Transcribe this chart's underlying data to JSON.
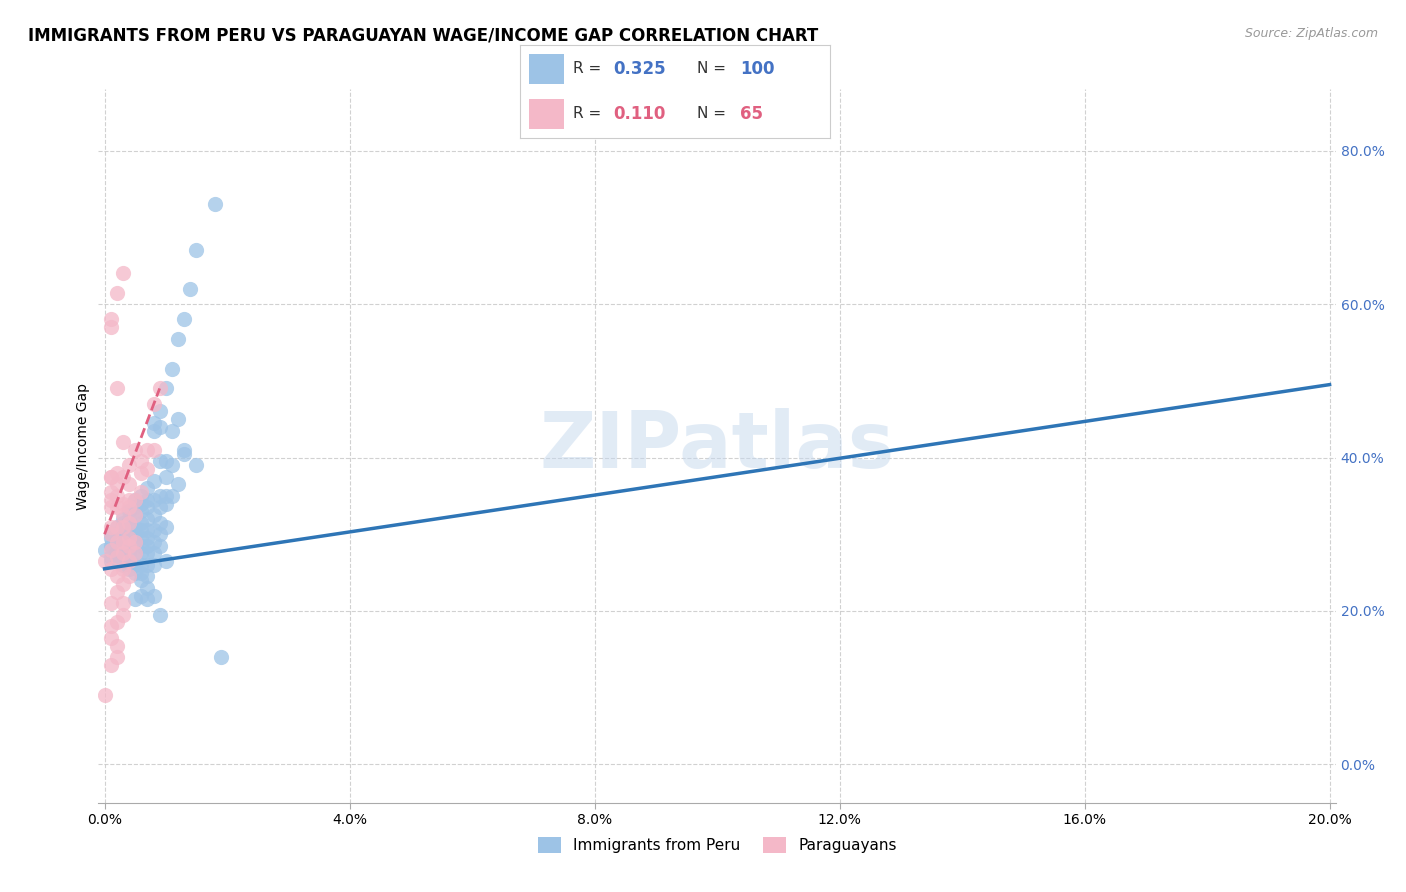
{
  "title": "IMMIGRANTS FROM PERU VS PARAGUAYAN WAGE/INCOME GAP CORRELATION CHART",
  "source": "Source: ZipAtlas.com",
  "ylabel": "Wage/Income Gap",
  "watermark": "ZIPatlas",
  "blue_color": "#9dc3e6",
  "pink_color": "#f4b8c8",
  "blue_line_color": "#2e75b6",
  "pink_line_color": "#e06080",
  "blue_scatter": [
    [
      0.0,
      0.28
    ],
    [
      0.001,
      0.265
    ],
    [
      0.001,
      0.27
    ],
    [
      0.001,
      0.295
    ],
    [
      0.001,
      0.3
    ],
    [
      0.001,
      0.285
    ],
    [
      0.002,
      0.31
    ],
    [
      0.002,
      0.29
    ],
    [
      0.002,
      0.295
    ],
    [
      0.002,
      0.28
    ],
    [
      0.002,
      0.265
    ],
    [
      0.002,
      0.275
    ],
    [
      0.003,
      0.315
    ],
    [
      0.003,
      0.32
    ],
    [
      0.003,
      0.305
    ],
    [
      0.003,
      0.295
    ],
    [
      0.003,
      0.28
    ],
    [
      0.003,
      0.27
    ],
    [
      0.003,
      0.26
    ],
    [
      0.003,
      0.265
    ],
    [
      0.004,
      0.33
    ],
    [
      0.004,
      0.32
    ],
    [
      0.004,
      0.315
    ],
    [
      0.004,
      0.3
    ],
    [
      0.004,
      0.285
    ],
    [
      0.004,
      0.275
    ],
    [
      0.004,
      0.265
    ],
    [
      0.004,
      0.255
    ],
    [
      0.005,
      0.345
    ],
    [
      0.005,
      0.335
    ],
    [
      0.005,
      0.325
    ],
    [
      0.005,
      0.31
    ],
    [
      0.005,
      0.3
    ],
    [
      0.005,
      0.29
    ],
    [
      0.005,
      0.275
    ],
    [
      0.005,
      0.26
    ],
    [
      0.005,
      0.25
    ],
    [
      0.005,
      0.215
    ],
    [
      0.006,
      0.35
    ],
    [
      0.006,
      0.34
    ],
    [
      0.006,
      0.33
    ],
    [
      0.006,
      0.315
    ],
    [
      0.006,
      0.305
    ],
    [
      0.006,
      0.295
    ],
    [
      0.006,
      0.285
    ],
    [
      0.006,
      0.275
    ],
    [
      0.006,
      0.26
    ],
    [
      0.006,
      0.25
    ],
    [
      0.006,
      0.24
    ],
    [
      0.006,
      0.22
    ],
    [
      0.007,
      0.36
    ],
    [
      0.007,
      0.345
    ],
    [
      0.007,
      0.335
    ],
    [
      0.007,
      0.32
    ],
    [
      0.007,
      0.305
    ],
    [
      0.007,
      0.295
    ],
    [
      0.007,
      0.285
    ],
    [
      0.007,
      0.275
    ],
    [
      0.007,
      0.26
    ],
    [
      0.007,
      0.245
    ],
    [
      0.007,
      0.23
    ],
    [
      0.007,
      0.215
    ],
    [
      0.008,
      0.37
    ],
    [
      0.008,
      0.445
    ],
    [
      0.008,
      0.435
    ],
    [
      0.008,
      0.345
    ],
    [
      0.008,
      0.325
    ],
    [
      0.008,
      0.305
    ],
    [
      0.008,
      0.29
    ],
    [
      0.008,
      0.275
    ],
    [
      0.008,
      0.26
    ],
    [
      0.008,
      0.22
    ],
    [
      0.009,
      0.46
    ],
    [
      0.009,
      0.44
    ],
    [
      0.009,
      0.395
    ],
    [
      0.009,
      0.35
    ],
    [
      0.009,
      0.335
    ],
    [
      0.009,
      0.315
    ],
    [
      0.009,
      0.3
    ],
    [
      0.009,
      0.285
    ],
    [
      0.009,
      0.195
    ],
    [
      0.01,
      0.49
    ],
    [
      0.01,
      0.395
    ],
    [
      0.01,
      0.375
    ],
    [
      0.01,
      0.35
    ],
    [
      0.01,
      0.34
    ],
    [
      0.01,
      0.31
    ],
    [
      0.01,
      0.265
    ],
    [
      0.011,
      0.515
    ],
    [
      0.011,
      0.435
    ],
    [
      0.011,
      0.39
    ],
    [
      0.011,
      0.35
    ],
    [
      0.012,
      0.555
    ],
    [
      0.012,
      0.45
    ],
    [
      0.012,
      0.365
    ],
    [
      0.013,
      0.58
    ],
    [
      0.013,
      0.41
    ],
    [
      0.013,
      0.405
    ],
    [
      0.014,
      0.62
    ],
    [
      0.015,
      0.67
    ],
    [
      0.015,
      0.39
    ],
    [
      0.018,
      0.73
    ],
    [
      0.019,
      0.14
    ]
  ],
  "pink_scatter": [
    [
      0.0,
      0.265
    ],
    [
      0.0,
      0.09
    ],
    [
      0.001,
      0.58
    ],
    [
      0.001,
      0.57
    ],
    [
      0.001,
      0.375
    ],
    [
      0.001,
      0.375
    ],
    [
      0.001,
      0.355
    ],
    [
      0.001,
      0.345
    ],
    [
      0.001,
      0.335
    ],
    [
      0.001,
      0.31
    ],
    [
      0.001,
      0.3
    ],
    [
      0.001,
      0.28
    ],
    [
      0.001,
      0.255
    ],
    [
      0.001,
      0.21
    ],
    [
      0.001,
      0.18
    ],
    [
      0.001,
      0.165
    ],
    [
      0.001,
      0.13
    ],
    [
      0.002,
      0.615
    ],
    [
      0.002,
      0.49
    ],
    [
      0.002,
      0.38
    ],
    [
      0.002,
      0.365
    ],
    [
      0.002,
      0.35
    ],
    [
      0.002,
      0.335
    ],
    [
      0.002,
      0.31
    ],
    [
      0.002,
      0.29
    ],
    [
      0.002,
      0.27
    ],
    [
      0.002,
      0.245
    ],
    [
      0.002,
      0.225
    ],
    [
      0.002,
      0.185
    ],
    [
      0.002,
      0.155
    ],
    [
      0.002,
      0.14
    ],
    [
      0.003,
      0.64
    ],
    [
      0.003,
      0.42
    ],
    [
      0.003,
      0.375
    ],
    [
      0.003,
      0.34
    ],
    [
      0.003,
      0.325
    ],
    [
      0.003,
      0.31
    ],
    [
      0.003,
      0.29
    ],
    [
      0.003,
      0.275
    ],
    [
      0.003,
      0.255
    ],
    [
      0.003,
      0.235
    ],
    [
      0.003,
      0.21
    ],
    [
      0.003,
      0.195
    ],
    [
      0.004,
      0.39
    ],
    [
      0.004,
      0.365
    ],
    [
      0.004,
      0.345
    ],
    [
      0.004,
      0.335
    ],
    [
      0.004,
      0.315
    ],
    [
      0.004,
      0.295
    ],
    [
      0.004,
      0.285
    ],
    [
      0.004,
      0.265
    ],
    [
      0.004,
      0.245
    ],
    [
      0.005,
      0.41
    ],
    [
      0.005,
      0.345
    ],
    [
      0.005,
      0.325
    ],
    [
      0.005,
      0.29
    ],
    [
      0.005,
      0.275
    ],
    [
      0.006,
      0.395
    ],
    [
      0.006,
      0.38
    ],
    [
      0.006,
      0.355
    ],
    [
      0.007,
      0.41
    ],
    [
      0.007,
      0.385
    ],
    [
      0.008,
      0.47
    ],
    [
      0.008,
      0.41
    ],
    [
      0.009,
      0.49
    ]
  ],
  "xlim": [
    -0.001,
    0.201
  ],
  "ylim": [
    -0.05,
    0.88
  ],
  "blue_trend_x": [
    0.0,
    0.2
  ],
  "blue_trend_y": [
    0.255,
    0.495
  ],
  "pink_trend_x": [
    0.0,
    0.009
  ],
  "pink_trend_y": [
    0.3,
    0.49
  ],
  "xticks": [
    0.0,
    0.04,
    0.08,
    0.12,
    0.16,
    0.2
  ],
  "yticks_right": [
    0.0,
    0.2,
    0.4,
    0.6,
    0.8
  ],
  "title_fontsize": 12,
  "label_fontsize": 10,
  "tick_fontsize": 10,
  "legend_fontsize": 12,
  "right_tick_color": "#4472c4",
  "bottom_label_color": "#4472c4"
}
